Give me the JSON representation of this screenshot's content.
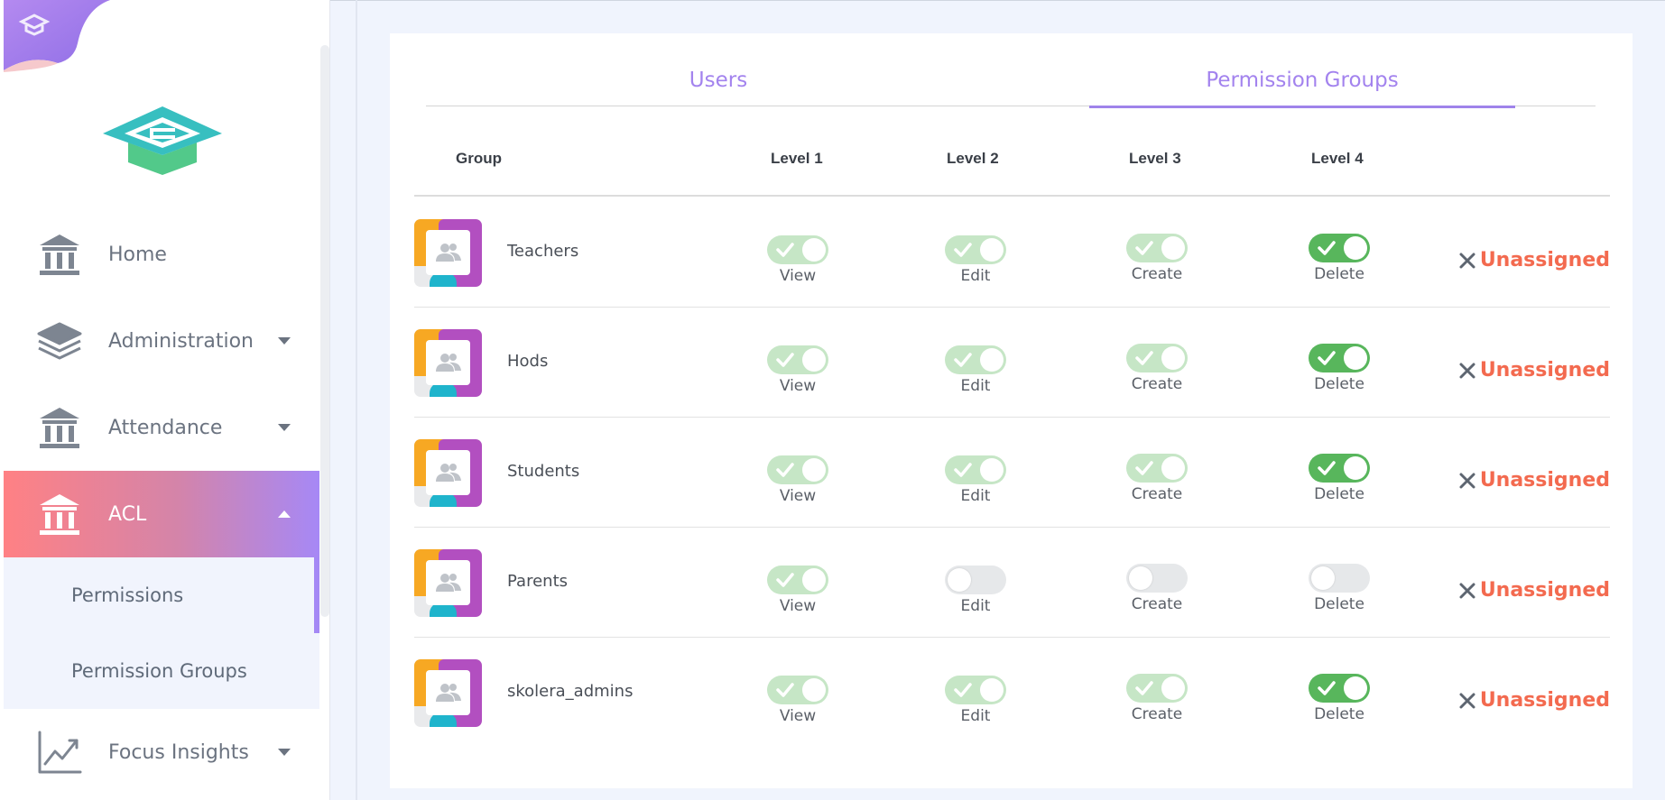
{
  "sidebar": {
    "nav": [
      {
        "label": "Home",
        "icon": "building-icon"
      },
      {
        "label": "Administration",
        "icon": "layers-icon"
      },
      {
        "label": "Attendance",
        "icon": "building-icon"
      },
      {
        "label": "ACL",
        "icon": "building-icon",
        "active": true
      },
      {
        "label": "Focus Insights",
        "icon": "chart-line-icon"
      }
    ],
    "acl_sub": [
      {
        "label": "Permissions",
        "active": true
      },
      {
        "label": "Permission Groups"
      }
    ]
  },
  "tabs": [
    {
      "label": "Users"
    },
    {
      "label": "Permission Groups",
      "active": true
    }
  ],
  "table": {
    "headers": {
      "group": "Group",
      "level1": "Level 1",
      "level2": "Level 2",
      "level3": "Level 3",
      "level4": "Level 4"
    },
    "toggle_labels": [
      "View",
      "Edit",
      "Create",
      "Delete"
    ],
    "unassigned_label": "Unassigned",
    "rows": [
      {
        "name": "Teachers",
        "toggles": [
          "on-light",
          "on-light",
          "on-light",
          "on-dark"
        ]
      },
      {
        "name": "Hods",
        "toggles": [
          "on-light",
          "on-light",
          "on-light",
          "on-dark"
        ]
      },
      {
        "name": "Students",
        "toggles": [
          "on-light",
          "on-light",
          "on-light",
          "on-dark"
        ]
      },
      {
        "name": "Parents",
        "toggles": [
          "on-light",
          "off",
          "off",
          "off"
        ]
      },
      {
        "name": "skolera_admins",
        "toggles": [
          "on-light",
          "on-light",
          "on-light",
          "on-dark"
        ]
      }
    ]
  },
  "colors": {
    "accent": "#a383ee",
    "danger": "#f36a4f",
    "toggle_on": "#58b65c",
    "toggle_on_light": "#c6e6c6"
  }
}
